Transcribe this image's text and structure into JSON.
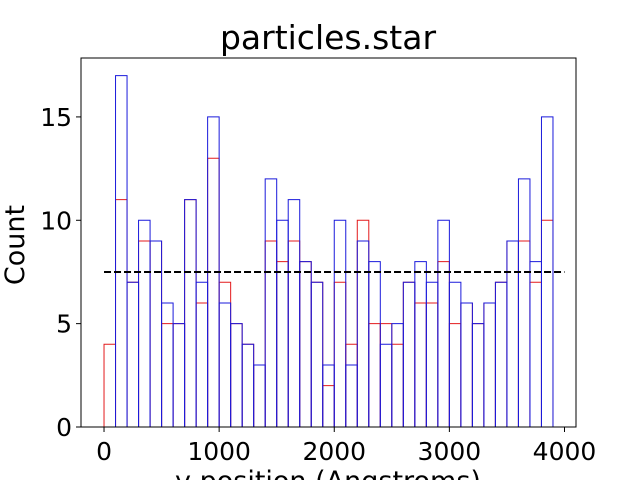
{
  "chart_data": {
    "type": "bar",
    "title": "particles.star",
    "xlabel": "y position (Angstroms)",
    "ylabel": "Count",
    "xlim": [
      -200,
      4100
    ],
    "ylim": [
      0,
      17.85
    ],
    "xticks": [
      0,
      1000,
      2000,
      3000,
      4000
    ],
    "yticks": [
      0,
      5,
      10,
      15
    ],
    "bin_width": 100,
    "series": [
      {
        "color": "#e31a1c",
        "bin_starts": [
          0,
          100,
          200,
          300,
          400,
          500,
          600,
          700,
          800,
          900,
          1000,
          1100,
          1200,
          1300,
          1400,
          1500,
          1600,
          1700,
          1800,
          1900,
          2000,
          2100,
          2200,
          2300,
          2400,
          2500,
          2600,
          2700,
          2800,
          2900,
          3000,
          3100,
          3200,
          3300,
          3400,
          3500,
          3600,
          3700,
          3800
        ],
        "values": [
          4,
          11,
          7,
          9,
          9,
          5,
          5,
          11,
          6,
          13,
          7,
          5,
          4,
          3,
          9,
          8,
          9,
          8,
          7,
          2,
          7,
          4,
          10,
          5,
          5,
          4,
          7,
          6,
          6,
          8,
          5,
          6,
          5,
          6,
          7,
          9,
          9,
          7,
          10
        ]
      },
      {
        "color": "#1a1adb",
        "bin_starts": [
          100,
          200,
          300,
          400,
          500,
          600,
          700,
          800,
          900,
          1000,
          1100,
          1200,
          1300,
          1400,
          1500,
          1600,
          1700,
          1800,
          1900,
          2000,
          2100,
          2200,
          2300,
          2400,
          2500,
          2600,
          2700,
          2800,
          2900,
          3000,
          3100,
          3200,
          3300,
          3400,
          3500,
          3600,
          3700,
          3800
        ],
        "values": [
          17,
          7,
          10,
          9,
          6,
          5,
          11,
          7,
          15,
          6,
          5,
          4,
          3,
          12,
          10,
          11,
          8,
          7,
          3,
          10,
          3,
          9,
          8,
          4,
          5,
          7,
          8,
          7,
          10,
          7,
          6,
          5,
          6,
          7,
          9,
          12,
          8,
          15
        ]
      }
    ],
    "reference_line": {
      "y": 7.5,
      "x_range": [
        0,
        4000
      ],
      "color": "#000000",
      "style": "dashed"
    }
  }
}
